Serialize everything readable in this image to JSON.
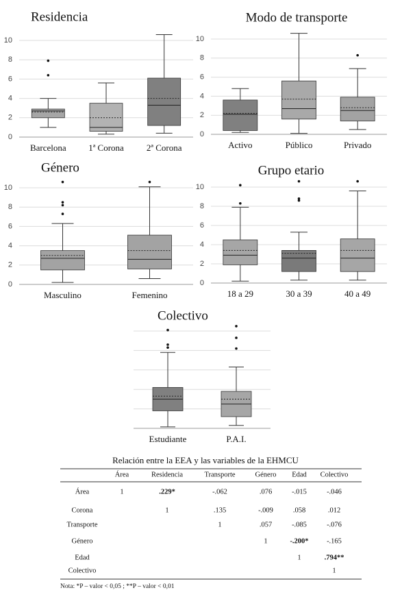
{
  "chart_data": [
    {
      "type": "box",
      "title": "Residencia",
      "categories": [
        "Barcelona",
        "1ª Corona",
        "2ª Corona"
      ],
      "colors": [
        "#a6a6a6",
        "#b3b3b3",
        "#808080"
      ],
      "boxes": [
        {
          "min": 1.0,
          "q1": 2.0,
          "median": 2.7,
          "q3": 2.9,
          "max": 4.0,
          "mean": 2.6,
          "outliers": [
            6.4,
            7.9
          ]
        },
        {
          "min": 0.3,
          "q1": 0.6,
          "median": 1.0,
          "q3": 3.5,
          "max": 5.6,
          "mean": 2.0,
          "outliers": []
        },
        {
          "min": 0.4,
          "q1": 1.2,
          "median": 3.3,
          "q3": 6.1,
          "max": 10.6,
          "mean": 4.0,
          "outliers": []
        }
      ],
      "ylim": [
        0,
        10
      ],
      "yticks": [
        0,
        2,
        4,
        6,
        8,
        10
      ],
      "grid": true,
      "tick_labels": true
    },
    {
      "type": "box",
      "title": "Modo de transporte",
      "categories": [
        "Activo",
        "Público",
        "Privado"
      ],
      "colors": [
        "#808080",
        "#a9a9a9",
        "#a3a3a3"
      ],
      "boxes": [
        {
          "min": 0.2,
          "q1": 0.4,
          "median": 2.1,
          "q3": 3.6,
          "max": 4.8,
          "mean": 2.2,
          "outliers": []
        },
        {
          "min": 0.1,
          "q1": 1.6,
          "median": 2.7,
          "q3": 5.6,
          "max": 10.6,
          "mean": 3.7,
          "outliers": []
        },
        {
          "min": 0.5,
          "q1": 1.4,
          "median": 2.5,
          "q3": 3.9,
          "max": 6.9,
          "mean": 2.8,
          "outliers": [
            8.3
          ]
        }
      ],
      "ylim": [
        0,
        10
      ],
      "yticks": [
        0,
        2,
        4,
        6,
        8,
        10
      ],
      "grid": true,
      "tick_labels": true
    },
    {
      "type": "box",
      "title": "Género",
      "categories": [
        "Masculino",
        "Femenino"
      ],
      "colors": [
        "#a3a3a3",
        "#a3a3a3"
      ],
      "boxes": [
        {
          "min": 0.2,
          "q1": 1.5,
          "median": 2.7,
          "q3": 3.5,
          "max": 6.3,
          "mean": 3.0,
          "outliers": [
            7.3,
            8.2,
            8.5,
            10.6
          ]
        },
        {
          "min": 0.6,
          "q1": 1.6,
          "median": 2.6,
          "q3": 5.1,
          "max": 10.1,
          "mean": 3.5,
          "outliers": [
            10.6
          ]
        }
      ],
      "ylim": [
        0,
        10
      ],
      "yticks": [
        0,
        2,
        4,
        6,
        8,
        10
      ],
      "grid": true,
      "tick_labels": true
    },
    {
      "type": "box",
      "title": "Grupo etario",
      "categories": [
        "18 a 29",
        "30 a 39",
        "40 a 49"
      ],
      "colors": [
        "#a6a6a6",
        "#7a7a7a",
        "#a6a6a6"
      ],
      "boxes": [
        {
          "min": 0.2,
          "q1": 1.9,
          "median": 2.9,
          "q3": 4.5,
          "max": 7.9,
          "mean": 3.4,
          "outliers": [
            8.3,
            10.2
          ]
        },
        {
          "min": 0.3,
          "q1": 1.2,
          "median": 2.6,
          "q3": 3.4,
          "max": 5.3,
          "mean": 3.1,
          "outliers": [
            8.6,
            8.8,
            10.6
          ]
        },
        {
          "min": 0.3,
          "q1": 1.2,
          "median": 2.6,
          "q3": 4.6,
          "max": 9.6,
          "mean": 3.4,
          "outliers": [
            10.6
          ]
        }
      ],
      "ylim": [
        0,
        10
      ],
      "yticks": [
        0,
        2,
        4,
        6,
        8,
        10
      ],
      "grid": true,
      "tick_labels": true
    },
    {
      "type": "box",
      "title": "Colectivo",
      "categories": [
        "Estudiante",
        "P.A.I."
      ],
      "colors": [
        "#808080",
        "#a6a6a6"
      ],
      "boxes": [
        {
          "min": 0.15,
          "q1": 1.8,
          "median": 3.0,
          "q3": 4.2,
          "max": 7.8,
          "mean": 3.3,
          "outliers": [
            8.3,
            8.6,
            10.1
          ]
        },
        {
          "min": 0.3,
          "q1": 1.2,
          "median": 2.5,
          "q3": 3.8,
          "max": 6.3,
          "mean": 3.0,
          "outliers": [
            8.2,
            9.3,
            10.5
          ]
        }
      ],
      "ylim": [
        0,
        10
      ],
      "yticks": [
        0,
        2,
        4,
        6,
        8,
        10
      ],
      "grid": true,
      "tick_labels": false
    }
  ],
  "table": {
    "title": "Relación entre la EEA y las variables de la EHMCU",
    "columns": [
      "Área",
      "Residencia",
      "Transporte",
      "Género",
      "Edad",
      "Colectivo"
    ],
    "rows": [
      {
        "label": "Área",
        "cells": [
          {
            "text": "1",
            "bold": false
          },
          {
            "text": ".229*",
            "bold": true
          },
          {
            "text": "-.062",
            "bold": false
          },
          {
            "text": ".076",
            "bold": false
          },
          {
            "text": "-.015",
            "bold": false
          },
          {
            "text": "-.046",
            "bold": false
          }
        ]
      },
      {
        "label": "Corona",
        "cells": [
          null,
          {
            "text": "1",
            "bold": false
          },
          {
            "text": ".135",
            "bold": false
          },
          {
            "text": "-.009",
            "bold": false
          },
          {
            "text": ".058",
            "bold": false
          },
          {
            "text": ".012",
            "bold": false
          }
        ]
      },
      {
        "label": "Transporte",
        "cells": [
          null,
          null,
          {
            "text": "1",
            "bold": false
          },
          {
            "text": ".057",
            "bold": false
          },
          {
            "text": "-.085",
            "bold": false
          },
          {
            "text": "-.076",
            "bold": false
          }
        ]
      },
      {
        "label": "Género",
        "cells": [
          null,
          null,
          null,
          {
            "text": "1",
            "bold": false
          },
          {
            "text": "-.200*",
            "bold": true
          },
          {
            "text": "-.165",
            "bold": false
          }
        ]
      },
      {
        "label": "Edad",
        "cells": [
          null,
          null,
          null,
          null,
          {
            "text": "1",
            "bold": false
          },
          {
            "text": ".794**",
            "bold": true
          }
        ]
      },
      {
        "label": "Colectivo",
        "cells": [
          null,
          null,
          null,
          null,
          null,
          {
            "text": "1",
            "bold": false
          }
        ]
      }
    ],
    "note": "Nota: *P – valor < 0,05 ; **P – valor < 0,01"
  }
}
